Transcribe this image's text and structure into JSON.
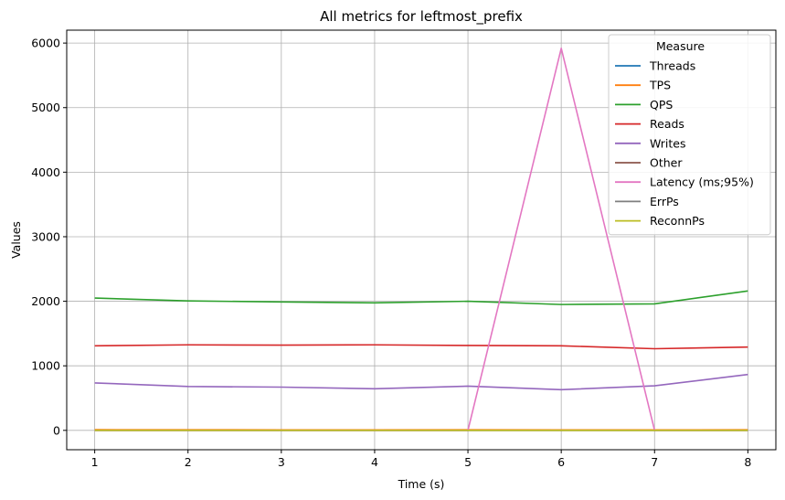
{
  "chart_data": {
    "type": "line",
    "title": "All metrics for leftmost_prefix",
    "xlabel": "Time (s)",
    "ylabel": "Values",
    "x": [
      1,
      2,
      3,
      4,
      5,
      6,
      7,
      8
    ],
    "xlim": [
      0.7,
      8.3
    ],
    "ylim": [
      -300,
      6200
    ],
    "xticks": [
      1,
      2,
      3,
      4,
      5,
      6,
      7,
      8
    ],
    "yticks": [
      0,
      1000,
      2000,
      3000,
      4000,
      5000,
      6000
    ],
    "grid": true,
    "legend": {
      "title": "Measure",
      "placement": "top-right"
    },
    "series": [
      {
        "name": "Threads",
        "color": "#1f77b4",
        "values": [
          8,
          8,
          8,
          8,
          8,
          8,
          8,
          8
        ]
      },
      {
        "name": "TPS",
        "color": "#ff7f0e",
        "values": [
          10,
          9,
          8,
          8,
          9,
          8,
          7,
          9
        ]
      },
      {
        "name": "QPS",
        "color": "#2ca02c",
        "values": [
          2050,
          2005,
          1990,
          1975,
          2000,
          1950,
          1960,
          2160
        ]
      },
      {
        "name": "Reads",
        "color": "#d62728",
        "values": [
          1310,
          1325,
          1320,
          1325,
          1315,
          1310,
          1265,
          1290
        ]
      },
      {
        "name": "Writes",
        "color": "#9467bd",
        "values": [
          735,
          680,
          670,
          645,
          685,
          630,
          690,
          865
        ]
      },
      {
        "name": "Other",
        "color": "#8c564b",
        "values": [
          0,
          0,
          0,
          0,
          0,
          0,
          0,
          0
        ]
      },
      {
        "name": "Latency (ms;95%)",
        "color": "#e377c2",
        "values": [
          0,
          0,
          0,
          0,
          0,
          5920,
          0,
          0
        ]
      },
      {
        "name": "ErrPs",
        "color": "#7f7f7f",
        "values": [
          0,
          0,
          0,
          0,
          0,
          0,
          0,
          0
        ]
      },
      {
        "name": "ReconnPs",
        "color": "#bcbd22",
        "values": [
          0,
          0,
          0,
          0,
          0,
          0,
          0,
          0
        ]
      }
    ]
  }
}
